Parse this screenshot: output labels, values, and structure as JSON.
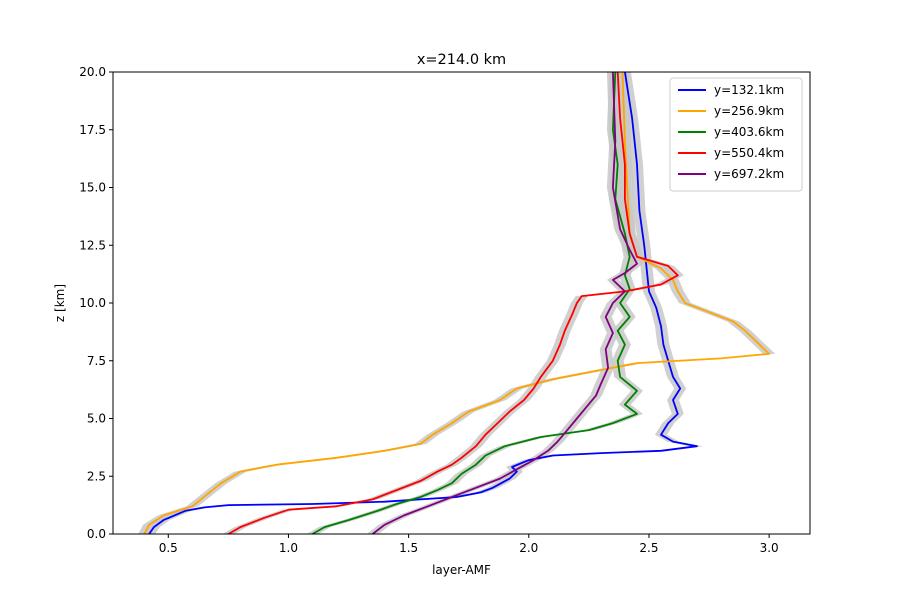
{
  "chart_data": {
    "type": "line",
    "title": "x=214.0 km",
    "xlabel": "layer-AMF",
    "ylabel": "z [km]",
    "xlim": [
      0.27,
      3.17
    ],
    "ylim": [
      0,
      20
    ],
    "xticks": [
      "0.5",
      "1.0",
      "1.5",
      "2.0",
      "2.5",
      "3.0"
    ],
    "xtick_values": [
      0.5,
      1.0,
      1.5,
      2.0,
      2.5,
      3.0
    ],
    "yticks": [
      "0.0",
      "2.5",
      "5.0",
      "7.5",
      "10.0",
      "12.5",
      "15.0",
      "17.5",
      "20.0"
    ],
    "ytick_values": [
      0,
      2.5,
      5,
      7.5,
      10,
      12.5,
      15,
      17.5,
      20
    ],
    "grid": false,
    "legend_position": "top-right",
    "uncertainty_band_color": "#c8c8c8",
    "series": [
      {
        "name": "y=132.1km",
        "color": "#0000ff",
        "points": [
          [
            0.42,
            0
          ],
          [
            0.44,
            0.3
          ],
          [
            0.48,
            0.6
          ],
          [
            0.57,
            1.0
          ],
          [
            0.65,
            1.15
          ],
          [
            0.75,
            1.25
          ],
          [
            1.1,
            1.3
          ],
          [
            1.4,
            1.4
          ],
          [
            1.7,
            1.6
          ],
          [
            1.8,
            1.8
          ],
          [
            1.85,
            2.0
          ],
          [
            1.92,
            2.4
          ],
          [
            1.95,
            2.7
          ],
          [
            1.93,
            2.9
          ],
          [
            2.0,
            3.2
          ],
          [
            2.1,
            3.4
          ],
          [
            2.3,
            3.5
          ],
          [
            2.55,
            3.6
          ],
          [
            2.7,
            3.8
          ],
          [
            2.6,
            4.0
          ],
          [
            2.55,
            4.3
          ],
          [
            2.58,
            4.8
          ],
          [
            2.62,
            5.2
          ],
          [
            2.6,
            5.8
          ],
          [
            2.63,
            6.3
          ],
          [
            2.6,
            6.8
          ],
          [
            2.58,
            7.5
          ],
          [
            2.56,
            8.2
          ],
          [
            2.55,
            9.0
          ],
          [
            2.53,
            9.8
          ],
          [
            2.5,
            10.5
          ],
          [
            2.49,
            11.5
          ],
          [
            2.48,
            12.5
          ],
          [
            2.46,
            14
          ],
          [
            2.45,
            16
          ],
          [
            2.43,
            18
          ],
          [
            2.4,
            20
          ]
        ]
      },
      {
        "name": "y=256.9km",
        "color": "#ffa500",
        "points": [
          [
            0.4,
            0
          ],
          [
            0.42,
            0.4
          ],
          [
            0.48,
            0.8
          ],
          [
            0.6,
            1.2
          ],
          [
            0.66,
            1.7
          ],
          [
            0.72,
            2.2
          ],
          [
            0.8,
            2.7
          ],
          [
            0.95,
            3.0
          ],
          [
            1.2,
            3.3
          ],
          [
            1.4,
            3.6
          ],
          [
            1.55,
            3.9
          ],
          [
            1.6,
            4.3
          ],
          [
            1.68,
            4.8
          ],
          [
            1.75,
            5.3
          ],
          [
            1.88,
            5.8
          ],
          [
            1.95,
            6.3
          ],
          [
            2.1,
            6.7
          ],
          [
            2.3,
            7.1
          ],
          [
            2.45,
            7.4
          ],
          [
            2.8,
            7.6
          ],
          [
            3.0,
            7.8
          ],
          [
            2.95,
            8.3
          ],
          [
            2.9,
            8.8
          ],
          [
            2.85,
            9.2
          ],
          [
            2.75,
            9.6
          ],
          [
            2.65,
            10.0
          ],
          [
            2.62,
            10.5
          ],
          [
            2.6,
            11.0
          ],
          [
            2.55,
            11.5
          ],
          [
            2.45,
            12.0
          ],
          [
            2.42,
            13.0
          ],
          [
            2.41,
            15
          ],
          [
            2.4,
            17
          ],
          [
            2.39,
            20
          ]
        ]
      },
      {
        "name": "y=403.6km",
        "color": "#008000",
        "points": [
          [
            1.1,
            0
          ],
          [
            1.15,
            0.3
          ],
          [
            1.25,
            0.6
          ],
          [
            1.37,
            1.0
          ],
          [
            1.45,
            1.3
          ],
          [
            1.55,
            1.6
          ],
          [
            1.62,
            1.9
          ],
          [
            1.68,
            2.2
          ],
          [
            1.72,
            2.6
          ],
          [
            1.78,
            3.0
          ],
          [
            1.82,
            3.4
          ],
          [
            1.9,
            3.8
          ],
          [
            2.05,
            4.2
          ],
          [
            2.25,
            4.5
          ],
          [
            2.35,
            4.8
          ],
          [
            2.45,
            5.2
          ],
          [
            2.4,
            5.6
          ],
          [
            2.45,
            6.2
          ],
          [
            2.38,
            6.8
          ],
          [
            2.37,
            7.5
          ],
          [
            2.4,
            8.2
          ],
          [
            2.37,
            8.8
          ],
          [
            2.42,
            9.4
          ],
          [
            2.38,
            10.0
          ],
          [
            2.42,
            10.6
          ],
          [
            2.4,
            11.2
          ],
          [
            2.42,
            12.0
          ],
          [
            2.4,
            13.0
          ],
          [
            2.36,
            14.5
          ],
          [
            2.37,
            16
          ],
          [
            2.35,
            17.5
          ],
          [
            2.36,
            20
          ]
        ]
      },
      {
        "name": "y=550.4km",
        "color": "#ff0000",
        "points": [
          [
            0.75,
            0
          ],
          [
            0.8,
            0.3
          ],
          [
            0.9,
            0.7
          ],
          [
            1.0,
            1.05
          ],
          [
            1.2,
            1.2
          ],
          [
            1.35,
            1.5
          ],
          [
            1.45,
            1.9
          ],
          [
            1.55,
            2.3
          ],
          [
            1.62,
            2.7
          ],
          [
            1.68,
            3.0
          ],
          [
            1.72,
            3.3
          ],
          [
            1.78,
            3.8
          ],
          [
            1.82,
            4.3
          ],
          [
            1.87,
            4.8
          ],
          [
            1.92,
            5.3
          ],
          [
            1.98,
            5.8
          ],
          [
            2.02,
            6.3
          ],
          [
            2.05,
            6.8
          ],
          [
            2.1,
            7.5
          ],
          [
            2.13,
            8.2
          ],
          [
            2.15,
            8.8
          ],
          [
            2.18,
            9.5
          ],
          [
            2.2,
            10.0
          ],
          [
            2.22,
            10.3
          ],
          [
            2.4,
            10.5
          ],
          [
            2.55,
            10.8
          ],
          [
            2.62,
            11.2
          ],
          [
            2.58,
            11.6
          ],
          [
            2.45,
            12.0
          ],
          [
            2.42,
            13.0
          ],
          [
            2.4,
            14.5
          ],
          [
            2.4,
            16
          ],
          [
            2.38,
            18
          ],
          [
            2.37,
            20
          ]
        ]
      },
      {
        "name": "y=697.2km",
        "color": "#800080",
        "points": [
          [
            1.35,
            0
          ],
          [
            1.4,
            0.4
          ],
          [
            1.48,
            0.8
          ],
          [
            1.58,
            1.2
          ],
          [
            1.68,
            1.6
          ],
          [
            1.78,
            2.0
          ],
          [
            1.88,
            2.4
          ],
          [
            1.95,
            2.8
          ],
          [
            2.02,
            3.2
          ],
          [
            2.08,
            3.6
          ],
          [
            2.12,
            4.0
          ],
          [
            2.16,
            4.5
          ],
          [
            2.2,
            5.0
          ],
          [
            2.24,
            5.5
          ],
          [
            2.28,
            6.0
          ],
          [
            2.3,
            6.5
          ],
          [
            2.33,
            7.2
          ],
          [
            2.32,
            8.0
          ],
          [
            2.35,
            8.7
          ],
          [
            2.32,
            9.4
          ],
          [
            2.35,
            10.0
          ],
          [
            2.4,
            10.5
          ],
          [
            2.35,
            11.0
          ],
          [
            2.4,
            11.3
          ],
          [
            2.45,
            11.7
          ],
          [
            2.42,
            12.3
          ],
          [
            2.38,
            13.2
          ],
          [
            2.35,
            15
          ],
          [
            2.36,
            17
          ],
          [
            2.35,
            20
          ]
        ]
      }
    ]
  }
}
